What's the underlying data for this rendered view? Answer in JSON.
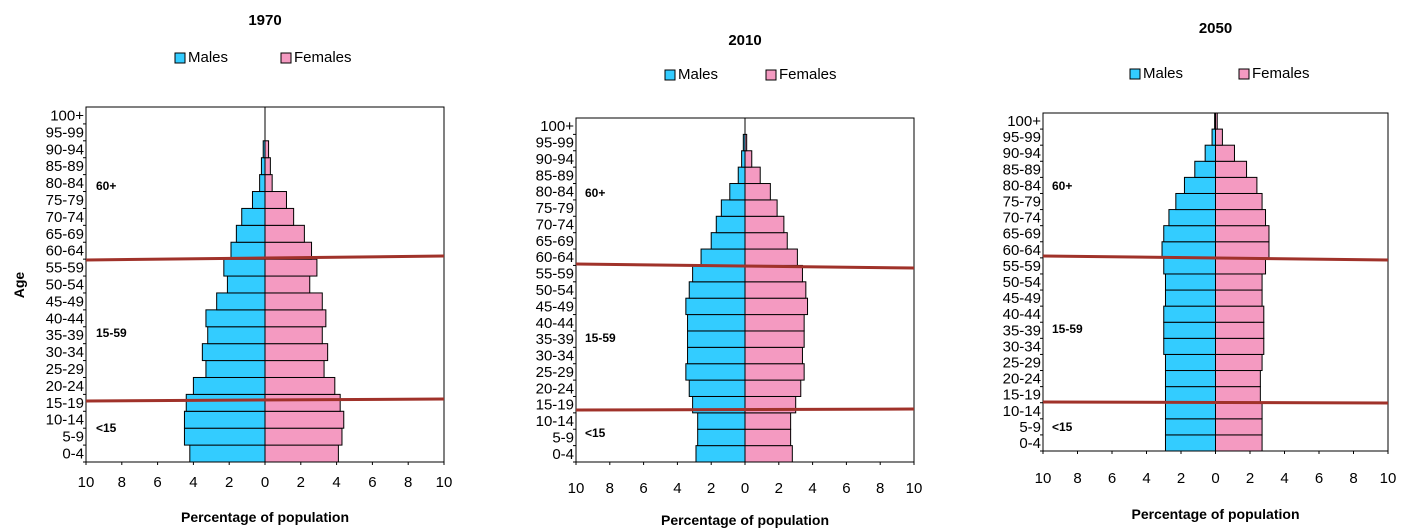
{
  "age_groups": [
    "0-4",
    "5-9",
    "10-14",
    "15-19",
    "20-24",
    "25-29",
    "30-34",
    "35-39",
    "40-44",
    "45-49",
    "50-54",
    "55-59",
    "60-64",
    "65-69",
    "70-74",
    "75-79",
    "80-84",
    "85-89",
    "90-94",
    "95-99",
    "100+"
  ],
  "colors": {
    "males": "#33ccff",
    "females": "#f49ac1",
    "divider": "#a0322a"
  },
  "chart_data": [
    {
      "type": "bar",
      "orientation": "horizontal",
      "title": "1970",
      "xlabel": "Percentage of population",
      "ylabel": "Age",
      "xlim": [
        -10,
        10
      ],
      "xticks": [
        "10",
        "8",
        "6",
        "4",
        "2",
        "0",
        "2",
        "4",
        "6",
        "8",
        "10"
      ],
      "categories": [
        "0-4",
        "5-9",
        "10-14",
        "15-19",
        "20-24",
        "25-29",
        "30-34",
        "35-39",
        "40-44",
        "45-49",
        "50-54",
        "55-59",
        "60-64",
        "65-69",
        "70-74",
        "75-79",
        "80-84",
        "85-89",
        "90-94",
        "95-99",
        "100+"
      ],
      "series": [
        {
          "name": "Males",
          "values": [
            4.2,
            4.5,
            4.5,
            4.4,
            4.0,
            3.3,
            3.5,
            3.2,
            3.3,
            2.7,
            2.1,
            2.3,
            1.9,
            1.6,
            1.3,
            0.7,
            0.3,
            0.2,
            0.1,
            0,
            0
          ]
        },
        {
          "name": "Females",
          "values": [
            4.1,
            4.3,
            4.4,
            4.2,
            3.9,
            3.3,
            3.5,
            3.2,
            3.4,
            3.2,
            2.5,
            2.9,
            2.6,
            2.2,
            1.6,
            1.2,
            0.4,
            0.3,
            0.2,
            0,
            0
          ]
        }
      ],
      "bands": [
        {
          "label": "60+",
          "from": "60-64"
        },
        {
          "label": "15-59",
          "from": "15-19"
        },
        {
          "label": "<15",
          "from": "0-4"
        }
      ]
    },
    {
      "type": "bar",
      "orientation": "horizontal",
      "title": "2010",
      "xlabel": "Percentage of population",
      "ylabel": "",
      "xlim": [
        -10,
        10
      ],
      "xticks": [
        "10",
        "8",
        "6",
        "4",
        "2",
        "0",
        "2",
        "4",
        "6",
        "8",
        "10"
      ],
      "categories": [
        "0-4",
        "5-9",
        "10-14",
        "15-19",
        "20-24",
        "25-29",
        "30-34",
        "35-39",
        "40-44",
        "45-49",
        "50-54",
        "55-59",
        "60-64",
        "65-69",
        "70-74",
        "75-79",
        "80-84",
        "85-89",
        "90-94",
        "95-99",
        "100+"
      ],
      "series": [
        {
          "name": "Males",
          "values": [
            2.9,
            2.8,
            2.8,
            3.1,
            3.3,
            3.5,
            3.4,
            3.4,
            3.4,
            3.5,
            3.3,
            3.1,
            2.6,
            2.0,
            1.7,
            1.4,
            0.9,
            0.4,
            0.2,
            0.1,
            0
          ]
        },
        {
          "name": "Females",
          "values": [
            2.8,
            2.7,
            2.7,
            3.0,
            3.3,
            3.5,
            3.4,
            3.5,
            3.5,
            3.7,
            3.6,
            3.4,
            3.1,
            2.5,
            2.3,
            1.9,
            1.5,
            0.9,
            0.4,
            0.1,
            0
          ]
        }
      ],
      "bands": [
        {
          "label": "60+",
          "from": "60-64"
        },
        {
          "label": "15-59",
          "from": "15-19"
        },
        {
          "label": "<15",
          "from": "0-4"
        }
      ]
    },
    {
      "type": "bar",
      "orientation": "horizontal",
      "title": "2050",
      "xlabel": "Percentage of population",
      "ylabel": "",
      "xlim": [
        -10,
        10
      ],
      "xticks": [
        "10",
        "8",
        "6",
        "4",
        "2",
        "0",
        "2",
        "4",
        "6",
        "8",
        "10"
      ],
      "categories": [
        "0-4",
        "5-9",
        "10-14",
        "15-19",
        "20-24",
        "25-29",
        "30-34",
        "35-39",
        "40-44",
        "45-49",
        "50-54",
        "55-59",
        "60-64",
        "65-69",
        "70-74",
        "75-79",
        "80-84",
        "85-89",
        "90-94",
        "95-99",
        "100+"
      ],
      "series": [
        {
          "name": "Males",
          "values": [
            2.9,
            2.9,
            2.9,
            2.9,
            2.9,
            2.9,
            3.0,
            3.0,
            3.0,
            2.9,
            2.9,
            3.0,
            3.1,
            3.0,
            2.7,
            2.3,
            1.8,
            1.2,
            0.6,
            0.2,
            0.05
          ]
        },
        {
          "name": "Females",
          "values": [
            2.7,
            2.7,
            2.7,
            2.6,
            2.6,
            2.7,
            2.8,
            2.8,
            2.8,
            2.7,
            2.7,
            2.9,
            3.1,
            3.1,
            2.9,
            2.7,
            2.4,
            1.8,
            1.1,
            0.4,
            0.1
          ]
        }
      ],
      "bands": [
        {
          "label": "60+",
          "from": "60-64"
        },
        {
          "label": "15-59",
          "from": "15-19"
        },
        {
          "label": "<15",
          "from": "0-4"
        }
      ]
    }
  ]
}
